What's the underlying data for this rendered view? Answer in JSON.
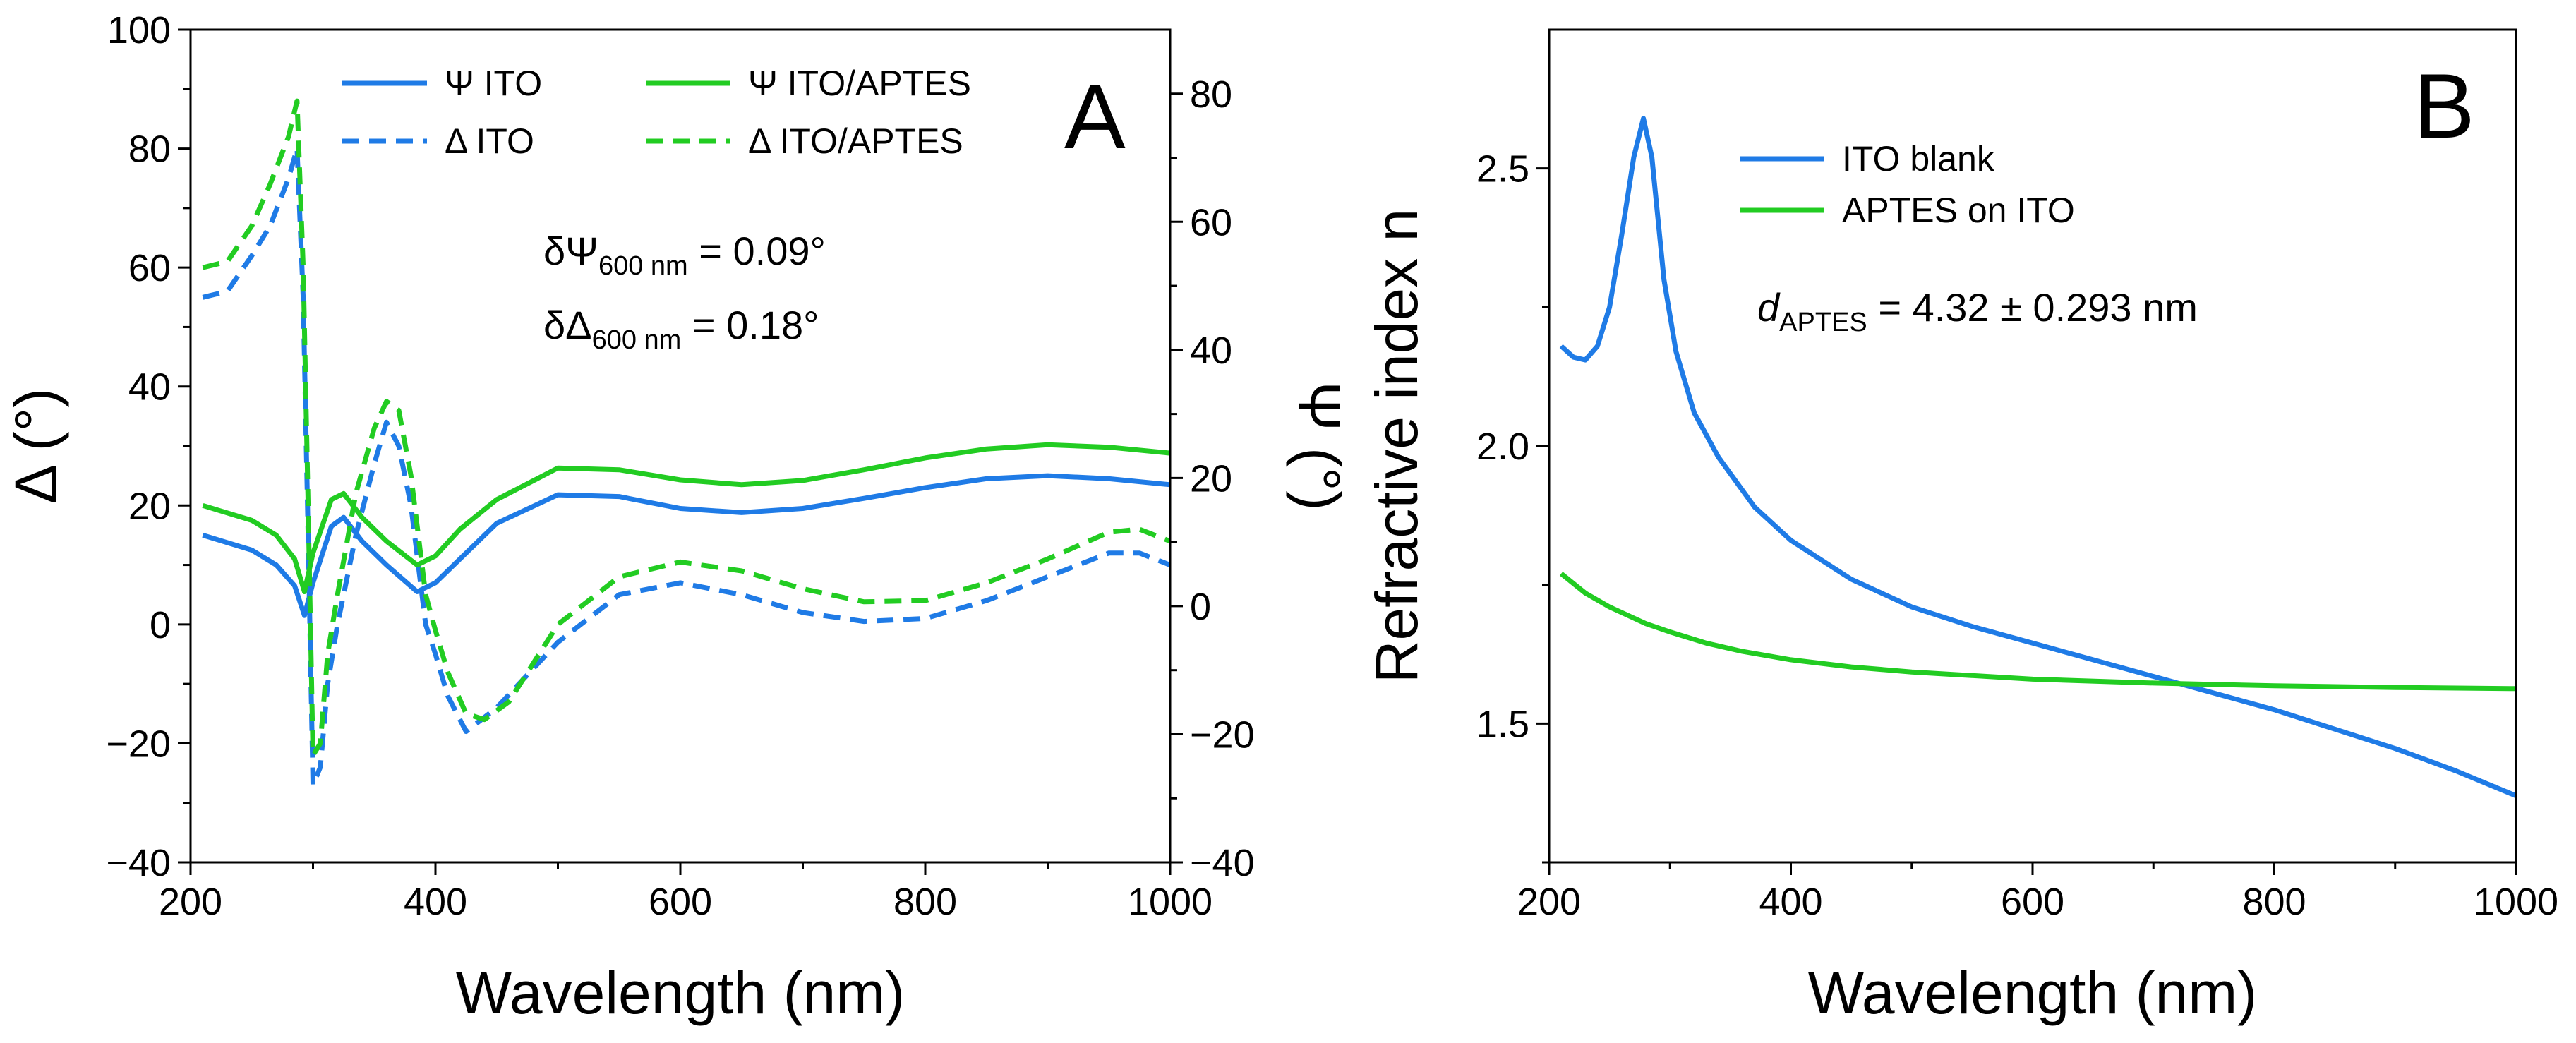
{
  "chart_data": [
    {
      "panel_label": "A",
      "type": "line",
      "xlabel": "Wavelength (nm)",
      "ylabel_left": "Δ (°)",
      "ylabel_right": "Ψ (°)",
      "xlim": [
        200,
        1000
      ],
      "ylim_left": [
        -40,
        100
      ],
      "ylim_right": [
        -40,
        90
      ],
      "xticks": [
        200,
        400,
        600,
        800,
        1000
      ],
      "yticks_left": [
        -40,
        -20,
        0,
        20,
        40,
        60,
        80,
        100
      ],
      "yticks_right": [
        -40,
        -20,
        0,
        20,
        40,
        60,
        80
      ],
      "xtick_labels": [
        "200",
        "400",
        "600",
        "800",
        "1000"
      ],
      "ytick_labels_left": [
        "−40",
        "−20",
        "0",
        "20",
        "40",
        "60",
        "80",
        "100"
      ],
      "ytick_labels_right": [
        "−40",
        "−20",
        "0",
        "20",
        "40",
        "60",
        "80"
      ],
      "annotations": [
        {
          "prefix": "δΨ",
          "subscript": "600 nm",
          "suffix": " = 0.09°"
        },
        {
          "prefix": "δΔ",
          "subscript": "600 nm",
          "suffix": " = 0.18°"
        }
      ],
      "series": [
        {
          "name": "Ψ ITO",
          "axis": "left",
          "style": "solid",
          "color": "#1f7be6",
          "x": [
            210,
            250,
            270,
            285,
            293,
            300,
            315,
            325,
            340,
            360,
            385,
            400,
            420,
            450,
            500,
            550,
            600,
            650,
            700,
            750,
            800,
            850,
            900,
            950,
            1000
          ],
          "y": [
            15,
            12.5,
            10,
            6.5,
            1.5,
            7,
            16.5,
            18,
            14,
            10,
            5.5,
            7,
            11,
            17,
            21.8,
            21.5,
            19.5,
            18.8,
            19.5,
            21.2,
            23,
            24.5,
            25,
            24.5,
            23.5
          ]
        },
        {
          "name": "Δ ITO",
          "axis": "left",
          "style": "dashed",
          "color": "#1f7be6",
          "x": [
            210,
            230,
            250,
            265,
            280,
            287,
            292,
            296,
            300,
            306,
            312,
            320,
            335,
            350,
            360,
            370,
            380,
            392,
            400,
            410,
            425,
            450,
            500,
            550,
            600,
            650,
            700,
            750,
            800,
            850,
            900,
            950,
            975,
            1000
          ],
          "y": [
            55,
            56,
            62,
            67,
            75,
            80,
            55,
            15,
            -27,
            -24,
            -10,
            0,
            15,
            27,
            34,
            30,
            20,
            0,
            -5,
            -12,
            -18,
            -14,
            -3,
            5,
            7,
            5,
            2,
            0.5,
            1,
            4,
            8,
            12,
            12,
            10
          ]
        },
        {
          "name": "Ψ ITO/APTES",
          "axis": "left",
          "style": "solid",
          "color": "#22cc22",
          "x": [
            210,
            250,
            270,
            285,
            293,
            300,
            315,
            325,
            340,
            360,
            385,
            400,
            420,
            450,
            500,
            550,
            600,
            650,
            700,
            750,
            800,
            850,
            900,
            950,
            1000
          ],
          "y": [
            20,
            17.5,
            15,
            11,
            5.5,
            12,
            21,
            22,
            18,
            14,
            10,
            11.5,
            16,
            21,
            26.3,
            26,
            24.3,
            23.5,
            24.2,
            26,
            28,
            29.5,
            30.2,
            29.8,
            28.8
          ]
        },
        {
          "name": "Δ ITO/APTES",
          "axis": "left",
          "style": "dashed",
          "color": "#22cc22",
          "x": [
            210,
            230,
            250,
            265,
            280,
            287,
            292,
            296,
            300,
            306,
            312,
            320,
            335,
            350,
            360,
            370,
            380,
            392,
            400,
            410,
            425,
            440,
            460,
            500,
            550,
            600,
            650,
            700,
            750,
            800,
            850,
            900,
            950,
            975,
            1000
          ],
          "y": [
            60,
            61,
            67,
            74,
            82,
            88,
            60,
            20,
            -22,
            -20,
            -5,
            5,
            22,
            33,
            37.5,
            36,
            25,
            5,
            -1,
            -8,
            -15,
            -16,
            -13,
            0,
            8,
            10.5,
            9,
            6,
            3.8,
            4,
            7,
            11,
            15.5,
            16,
            14
          ]
        }
      ]
    },
    {
      "panel_label": "B",
      "type": "line",
      "xlabel": "Wavelength (nm)",
      "ylabel": "Refractive index n",
      "xlim": [
        200,
        1000
      ],
      "ylim": [
        1.25,
        2.75
      ],
      "xticks": [
        200,
        400,
        600,
        800,
        1000
      ],
      "yticks": [
        1.5,
        2.0,
        2.5
      ],
      "xtick_labels": [
        "200",
        "400",
        "600",
        "800",
        "1000"
      ],
      "ytick_labels": [
        "1.5",
        "2.0",
        "2.5"
      ],
      "annotations": [
        {
          "prefix": "d",
          "subscript": "APTES",
          "suffix": "  = 4.32 ± 0.293 nm"
        }
      ],
      "series": [
        {
          "name": "ITO blank",
          "style": "solid",
          "color": "#1f7be6",
          "x": [
            210,
            220,
            230,
            240,
            250,
            260,
            270,
            278,
            285,
            295,
            305,
            320,
            340,
            370,
            400,
            450,
            500,
            550,
            600,
            650,
            700,
            750,
            800,
            850,
            900,
            950,
            1000
          ],
          "y": [
            2.18,
            2.16,
            2.155,
            2.18,
            2.25,
            2.38,
            2.52,
            2.59,
            2.52,
            2.3,
            2.17,
            2.06,
            1.98,
            1.89,
            1.83,
            1.76,
            1.71,
            1.675,
            1.645,
            1.615,
            1.585,
            1.555,
            1.525,
            1.49,
            1.455,
            1.415,
            1.37
          ]
        },
        {
          "name": "APTES on ITO",
          "style": "solid",
          "color": "#22cc22",
          "x": [
            210,
            230,
            250,
            280,
            300,
            330,
            360,
            400,
            450,
            500,
            600,
            700,
            800,
            900,
            1000
          ],
          "y": [
            1.77,
            1.735,
            1.71,
            1.68,
            1.665,
            1.645,
            1.63,
            1.615,
            1.602,
            1.593,
            1.58,
            1.573,
            1.568,
            1.565,
            1.563
          ]
        }
      ]
    }
  ]
}
